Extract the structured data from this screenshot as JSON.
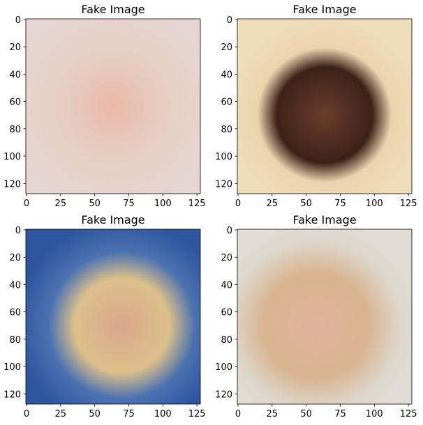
{
  "chart_data": [
    {
      "type": "image",
      "title": "Fake Image",
      "xlim": [
        -0.5,
        127.5
      ],
      "ylim": [
        127.5,
        -0.5
      ],
      "xticks": [
        0,
        25,
        50,
        75,
        100,
        125
      ],
      "yticks": [
        0,
        20,
        40,
        60,
        80,
        100,
        120
      ]
    },
    {
      "type": "image",
      "title": "Fake Image",
      "xlim": [
        -0.5,
        127.5
      ],
      "ylim": [
        127.5,
        -0.5
      ],
      "xticks": [
        0,
        25,
        50,
        75,
        100,
        125
      ],
      "yticks": [
        0,
        20,
        40,
        60,
        80,
        100,
        120
      ]
    },
    {
      "type": "image",
      "title": "Fake Image",
      "xlim": [
        -0.5,
        127.5
      ],
      "ylim": [
        127.5,
        -0.5
      ],
      "xticks": [
        0,
        25,
        50,
        75,
        100,
        125
      ],
      "yticks": [
        0,
        20,
        40,
        60,
        80,
        100,
        120
      ]
    },
    {
      "type": "image",
      "title": "Fake Image",
      "xlim": [
        -0.5,
        127.5
      ],
      "ylim": [
        127.5,
        -0.5
      ],
      "xticks": [
        0,
        25,
        50,
        75,
        100,
        125
      ],
      "yticks": [
        0,
        20,
        40,
        60,
        80,
        100,
        120
      ]
    }
  ]
}
